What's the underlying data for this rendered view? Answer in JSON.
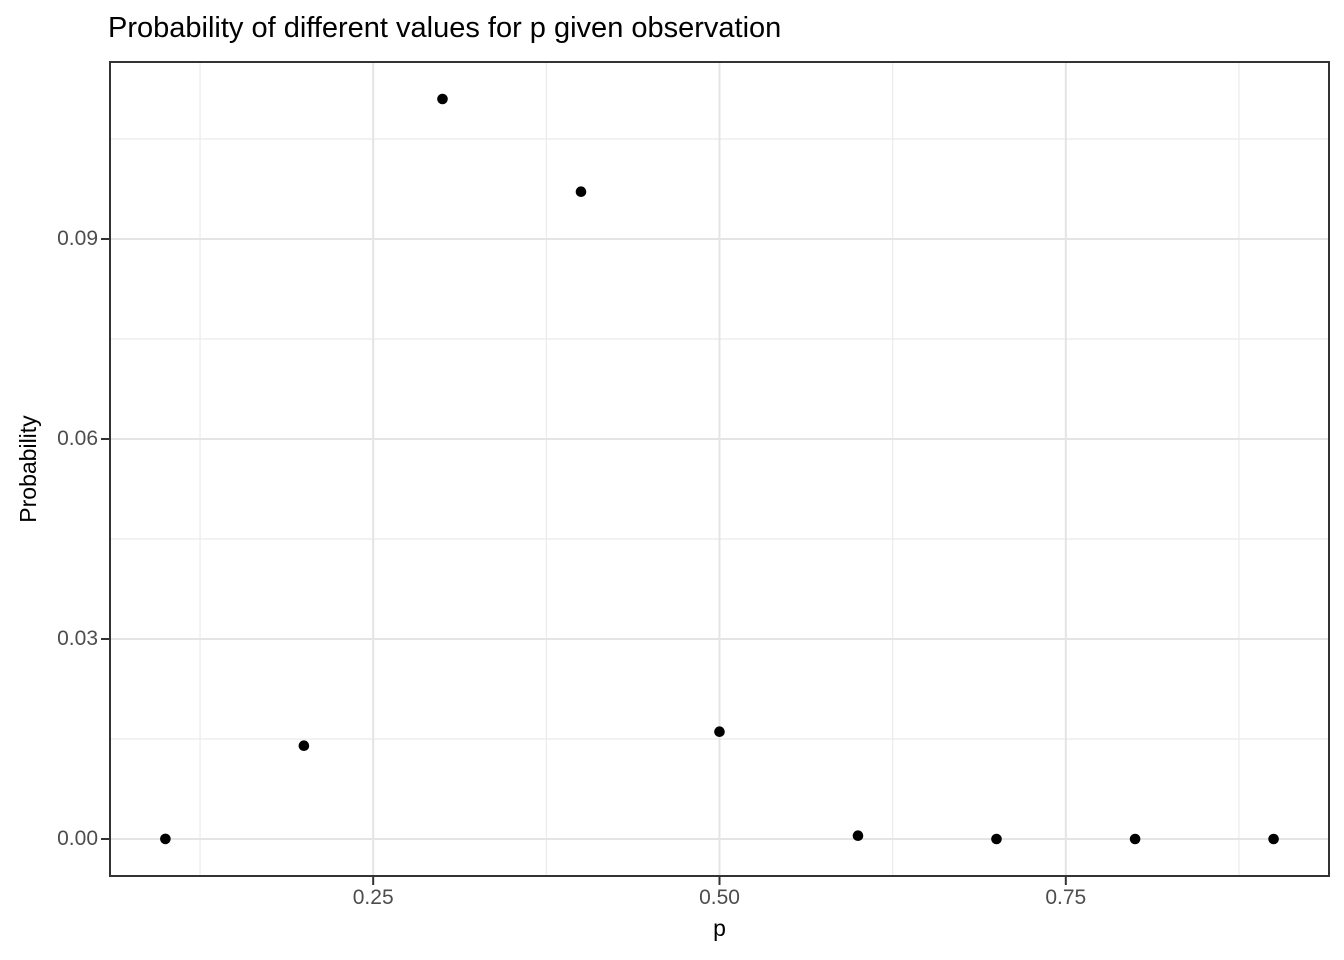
{
  "title": "Probability of different values for p given observation",
  "chart_data": {
    "type": "scatter",
    "title": "Probability of different values for p given observation",
    "xlabel": "p",
    "ylabel": "Probability",
    "x": [
      0.1,
      0.2,
      0.3,
      0.4,
      0.5,
      0.6,
      0.7,
      0.8,
      0.9
    ],
    "y": [
      2e-05,
      0.014,
      0.111,
      0.0971,
      0.0161,
      0.0005,
      2e-06,
      0,
      0
    ],
    "xlim": [
      0.06,
      0.94
    ],
    "ylim": [
      -0.00555,
      0.11655
    ],
    "x_ticks": [
      {
        "value": 0.25,
        "label": "0.25"
      },
      {
        "value": 0.5,
        "label": "0.50"
      },
      {
        "value": 0.75,
        "label": "0.75"
      }
    ],
    "y_ticks": [
      {
        "value": 0.0,
        "label": "0.00"
      },
      {
        "value": 0.03,
        "label": "0.03"
      },
      {
        "value": 0.06,
        "label": "0.06"
      },
      {
        "value": 0.09,
        "label": "0.09"
      }
    ],
    "x_minor": [
      0.125,
      0.375,
      0.625,
      0.875
    ],
    "y_minor": [
      0.015,
      0.045,
      0.075,
      0.105
    ],
    "grid": true,
    "legend": "none",
    "point_color": "#000000",
    "colors": {
      "background": "#FFFFFF",
      "panel_background": "#FFFFFF",
      "panel_border": "#333333",
      "grid_major": "#E4E4E4",
      "grid_minor": "#EBEBEB",
      "tick": "#333333",
      "tick_label": "#4D4D4D",
      "title": "#000000"
    }
  }
}
